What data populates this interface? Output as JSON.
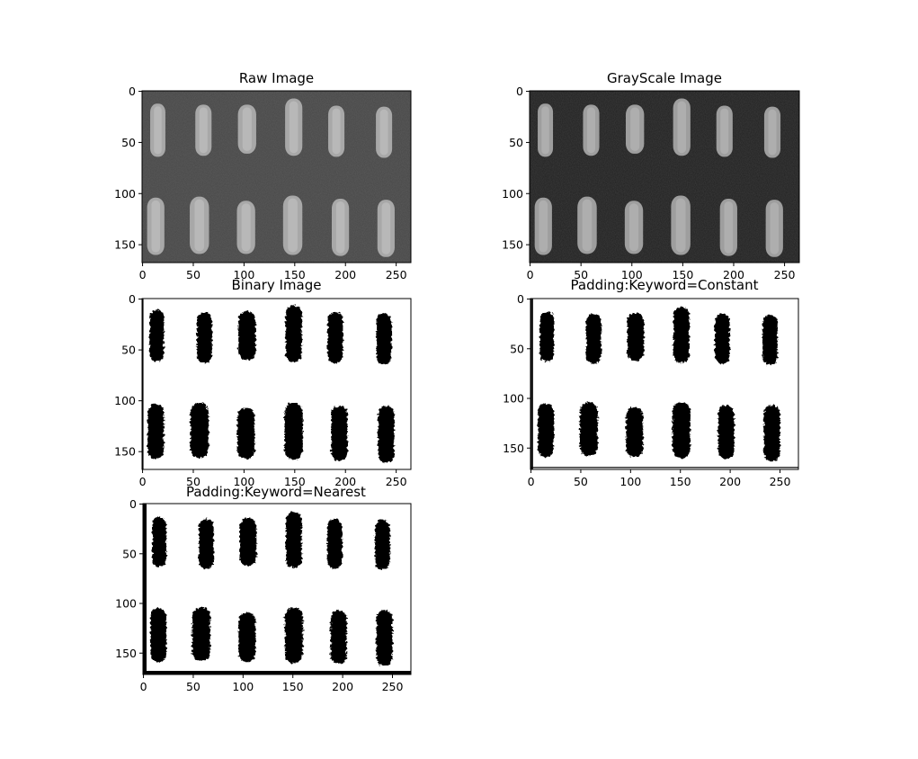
{
  "chart_data": [
    {
      "type": "image",
      "title": "Raw Image",
      "render": "grayscale",
      "bg_gray": 0.28,
      "grain_gray": 0.66,
      "x_ticks": [
        0,
        50,
        100,
        150,
        200,
        250
      ],
      "y_ticks": [
        0,
        50,
        100,
        150
      ],
      "xlim": [
        -0.5,
        264.5
      ],
      "ylim": [
        167.5,
        -0.5
      ],
      "grains": [
        {
          "cx": 15,
          "cy": 38,
          "w": 15,
          "h": 52
        },
        {
          "cx": 60,
          "cy": 38,
          "w": 16,
          "h": 50
        },
        {
          "cx": 103,
          "cy": 37,
          "w": 18,
          "h": 48
        },
        {
          "cx": 149,
          "cy": 35,
          "w": 17,
          "h": 56
        },
        {
          "cx": 191,
          "cy": 39,
          "w": 16,
          "h": 50
        },
        {
          "cx": 238,
          "cy": 40,
          "w": 16,
          "h": 50
        },
        {
          "cx": 13,
          "cy": 132,
          "w": 17,
          "h": 56
        },
        {
          "cx": 56,
          "cy": 131,
          "w": 19,
          "h": 56
        },
        {
          "cx": 102,
          "cy": 133,
          "w": 18,
          "h": 52
        },
        {
          "cx": 148,
          "cy": 131,
          "w": 19,
          "h": 58
        },
        {
          "cx": 195,
          "cy": 133,
          "w": 17,
          "h": 56
        },
        {
          "cx": 240,
          "cy": 134,
          "w": 17,
          "h": 56
        }
      ]
    },
    {
      "type": "image",
      "title": "GrayScale Image",
      "render": "grayscale",
      "bg_gray": 0.13,
      "grain_gray": 0.62,
      "x_ticks": [
        0,
        50,
        100,
        150,
        200,
        250
      ],
      "y_ticks": [
        0,
        50,
        100,
        150
      ],
      "xlim": [
        -0.5,
        264.5
      ],
      "ylim": [
        167.5,
        -0.5
      ],
      "grains": [
        {
          "cx": 15,
          "cy": 38,
          "w": 15,
          "h": 52
        },
        {
          "cx": 60,
          "cy": 38,
          "w": 16,
          "h": 50
        },
        {
          "cx": 103,
          "cy": 37,
          "w": 18,
          "h": 48
        },
        {
          "cx": 149,
          "cy": 35,
          "w": 17,
          "h": 56
        },
        {
          "cx": 191,
          "cy": 39,
          "w": 16,
          "h": 50
        },
        {
          "cx": 238,
          "cy": 40,
          "w": 16,
          "h": 50
        },
        {
          "cx": 13,
          "cy": 132,
          "w": 17,
          "h": 56
        },
        {
          "cx": 56,
          "cy": 131,
          "w": 19,
          "h": 56
        },
        {
          "cx": 102,
          "cy": 133,
          "w": 18,
          "h": 52
        },
        {
          "cx": 148,
          "cy": 131,
          "w": 19,
          "h": 58
        },
        {
          "cx": 195,
          "cy": 133,
          "w": 17,
          "h": 56
        },
        {
          "cx": 240,
          "cy": 134,
          "w": 17,
          "h": 56
        }
      ]
    },
    {
      "type": "image",
      "title": "Binary Image",
      "render": "binary",
      "x_ticks": [
        0,
        50,
        100,
        150,
        200,
        250
      ],
      "y_ticks": [
        0,
        50,
        100,
        150
      ],
      "xlim": [
        -0.5,
        264.5
      ],
      "ylim": [
        167.5,
        -0.5
      ],
      "grains": [
        {
          "cx": 14,
          "cy": 36,
          "w": 14,
          "h": 50
        },
        {
          "cx": 61,
          "cy": 38,
          "w": 15,
          "h": 50
        },
        {
          "cx": 103,
          "cy": 36,
          "w": 17,
          "h": 48
        },
        {
          "cx": 149,
          "cy": 34,
          "w": 16,
          "h": 56
        },
        {
          "cx": 190,
          "cy": 38,
          "w": 15,
          "h": 50
        },
        {
          "cx": 238,
          "cy": 39,
          "w": 15,
          "h": 50
        },
        {
          "cx": 13,
          "cy": 130,
          "w": 16,
          "h": 54
        },
        {
          "cx": 56,
          "cy": 129,
          "w": 18,
          "h": 54
        },
        {
          "cx": 102,
          "cy": 132,
          "w": 17,
          "h": 50
        },
        {
          "cx": 149,
          "cy": 130,
          "w": 18,
          "h": 56
        },
        {
          "cx": 194,
          "cy": 132,
          "w": 16,
          "h": 54
        },
        {
          "cx": 240,
          "cy": 133,
          "w": 16,
          "h": 56
        }
      ]
    },
    {
      "type": "image",
      "title": "Padding:Keyword=Constant",
      "render": "binary",
      "x_ticks": [
        0,
        50,
        100,
        150,
        200,
        250
      ],
      "y_ticks": [
        0,
        50,
        100,
        150
      ],
      "xlim": [
        -0.5,
        268.5
      ],
      "ylim": [
        171.5,
        -0.5
      ],
      "grains": [
        {
          "cx": 16,
          "cy": 38,
          "w": 14,
          "h": 50
        },
        {
          "cx": 63,
          "cy": 40,
          "w": 15,
          "h": 50
        },
        {
          "cx": 105,
          "cy": 38,
          "w": 17,
          "h": 48
        },
        {
          "cx": 151,
          "cy": 36,
          "w": 16,
          "h": 56
        },
        {
          "cx": 192,
          "cy": 40,
          "w": 15,
          "h": 50
        },
        {
          "cx": 240,
          "cy": 41,
          "w": 15,
          "h": 50
        },
        {
          "cx": 15,
          "cy": 132,
          "w": 16,
          "h": 54
        },
        {
          "cx": 58,
          "cy": 131,
          "w": 18,
          "h": 54
        },
        {
          "cx": 104,
          "cy": 134,
          "w": 17,
          "h": 50
        },
        {
          "cx": 151,
          "cy": 132,
          "w": 18,
          "h": 56
        },
        {
          "cx": 196,
          "cy": 134,
          "w": 16,
          "h": 54
        },
        {
          "cx": 242,
          "cy": 135,
          "w": 16,
          "h": 56
        }
      ],
      "padding": "constant"
    },
    {
      "type": "image",
      "title": "Padding:Keyword=Nearest",
      "render": "binary",
      "x_ticks": [
        0,
        50,
        100,
        150,
        200,
        250
      ],
      "y_ticks": [
        0,
        50,
        100,
        150
      ],
      "xlim": [
        -0.5,
        268.5
      ],
      "ylim": [
        171.5,
        -0.5
      ],
      "grains": [
        {
          "cx": 16,
          "cy": 38,
          "w": 14,
          "h": 50
        },
        {
          "cx": 63,
          "cy": 40,
          "w": 15,
          "h": 50
        },
        {
          "cx": 105,
          "cy": 38,
          "w": 17,
          "h": 48
        },
        {
          "cx": 151,
          "cy": 36,
          "w": 16,
          "h": 56
        },
        {
          "cx": 192,
          "cy": 40,
          "w": 15,
          "h": 50
        },
        {
          "cx": 240,
          "cy": 41,
          "w": 15,
          "h": 50
        },
        {
          "cx": 15,
          "cy": 132,
          "w": 16,
          "h": 54
        },
        {
          "cx": 58,
          "cy": 131,
          "w": 18,
          "h": 54
        },
        {
          "cx": 104,
          "cy": 134,
          "w": 17,
          "h": 50
        },
        {
          "cx": 151,
          "cy": 132,
          "w": 18,
          "h": 56
        },
        {
          "cx": 196,
          "cy": 134,
          "w": 16,
          "h": 54
        },
        {
          "cx": 242,
          "cy": 135,
          "w": 16,
          "h": 56
        }
      ],
      "padding": "nearest"
    }
  ]
}
